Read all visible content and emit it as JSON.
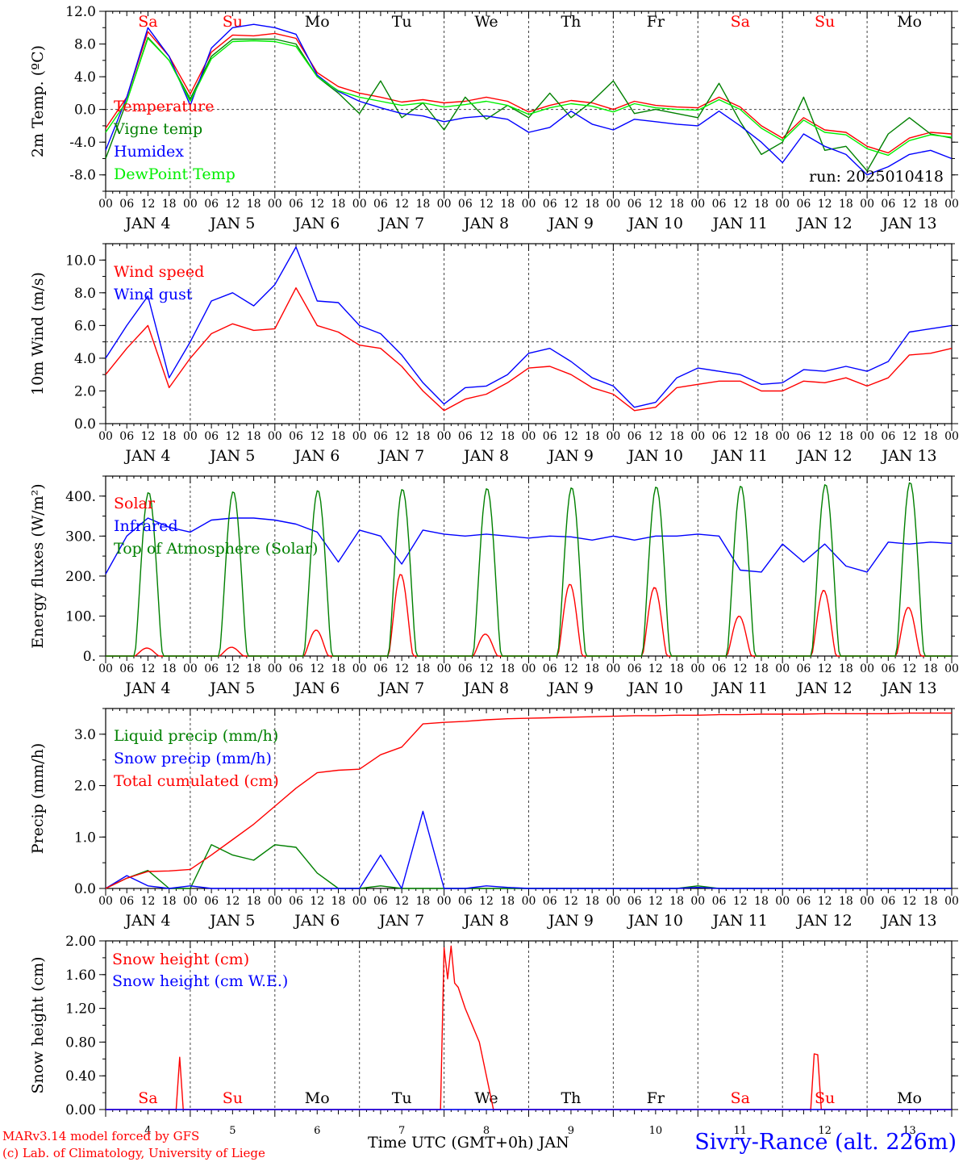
{
  "days": [
    "Sa",
    "Su",
    "Mo",
    "Tu",
    "We",
    "Th",
    "Fr",
    "Sa",
    "Su",
    "Mo"
  ],
  "weekend_flags": [
    true,
    true,
    false,
    false,
    false,
    false,
    false,
    true,
    true,
    false
  ],
  "date_labels": [
    "JAN  4",
    "JAN  5",
    "JAN  6",
    "JAN  7",
    "JAN  8",
    "JAN  9",
    "JAN 10",
    "JAN 11",
    "JAN 12",
    "JAN 13"
  ],
  "bottom_day_numbers": [
    "4",
    "5",
    "6",
    "7",
    "8",
    "9",
    "10",
    "11",
    "12",
    "13"
  ],
  "hour_ticks": [
    "00",
    "06",
    "12",
    "18"
  ],
  "final_hour_tick": "00",
  "xlabel": "Time UTC (GMT+0h) JAN",
  "footer": {
    "model": "MARv3.14 model forced by GFS",
    "credit": "(c) Lab. of Climatology, University of Liege",
    "location": "Sivry-Rance (alt. 226m)"
  },
  "colors": {
    "red": "#ff0000",
    "green": "#008000",
    "blue": "#0000ff",
    "lightgreen": "#00ee00",
    "weekend": "#ff0000",
    "weekday": "#000000"
  },
  "chart_data": [
    {
      "type": "line",
      "id": "temperature",
      "ylabel": "2m Temp. (ºC)",
      "ylim": [
        -10,
        12
      ],
      "yticks": [
        "12.0",
        "8.0",
        "4.0",
        "0.0",
        "-4.0",
        "-8.0"
      ],
      "ytick_values": [
        12,
        8,
        4,
        0,
        -4,
        -8
      ],
      "reference_line": 0,
      "annotation": "run: 2025010418",
      "x_unit": "hours since Jan 4 00 UTC",
      "series": [
        {
          "name": "Temperature",
          "color": "#ff0000",
          "x": [
            0,
            6,
            12,
            18,
            24,
            30,
            36,
            42,
            48,
            54,
            60,
            66,
            72,
            78,
            84,
            90,
            96,
            102,
            108,
            114,
            120,
            126,
            132,
            138,
            144,
            150,
            156,
            162,
            168,
            174,
            180,
            186,
            192,
            198,
            204,
            210,
            216,
            222,
            228,
            234,
            240
          ],
          "y": [
            -2.3,
            1.5,
            9.5,
            6.5,
            1.9,
            7.0,
            9.1,
            9.0,
            9.3,
            8.7,
            4.5,
            2.8,
            2.0,
            1.5,
            0.9,
            1.2,
            0.8,
            1.0,
            1.5,
            1.0,
            -0.3,
            0.5,
            1.1,
            0.8,
            0.0,
            1.0,
            0.5,
            0.3,
            0.2,
            1.5,
            0.3,
            -2.0,
            -3.5,
            -1.0,
            -2.5,
            -2.8,
            -4.5,
            -5.3,
            -3.5,
            -2.8,
            -3.0
          ]
        },
        {
          "name": "Vigne temp",
          "color": "#008000",
          "x": [
            0,
            6,
            12,
            18,
            24,
            30,
            36,
            42,
            48,
            54,
            60,
            66,
            72,
            78,
            84,
            90,
            96,
            102,
            108,
            114,
            120,
            126,
            132,
            138,
            144,
            150,
            156,
            162,
            168,
            174,
            180,
            186,
            192,
            198,
            204,
            210,
            216,
            222,
            228,
            234,
            240
          ],
          "y": [
            -6.0,
            1.0,
            8.8,
            6.0,
            1.3,
            6.5,
            8.6,
            8.6,
            8.6,
            8.0,
            4.0,
            2.0,
            -0.5,
            3.5,
            -1.0,
            0.8,
            -2.5,
            1.5,
            -1.2,
            0.5,
            -1.0,
            2.0,
            -1.0,
            1.0,
            3.5,
            -0.5,
            0.0,
            -0.5,
            -1.0,
            3.2,
            -1.5,
            -5.5,
            -4.0,
            1.5,
            -5.0,
            -4.5,
            -7.5,
            -3.0,
            -1.0,
            -3.0,
            -3.5
          ]
        },
        {
          "name": "Humidex",
          "color": "#0000ff",
          "x": [
            0,
            6,
            12,
            18,
            24,
            30,
            36,
            42,
            48,
            54,
            60,
            66,
            72,
            78,
            84,
            90,
            96,
            102,
            108,
            114,
            120,
            126,
            132,
            138,
            144,
            150,
            156,
            162,
            168,
            174,
            180,
            186,
            192,
            198,
            204,
            210,
            216,
            222,
            228,
            234,
            240
          ],
          "y": [
            -5.0,
            1.5,
            10.0,
            6.5,
            0.5,
            7.5,
            10.0,
            10.4,
            10.0,
            9.2,
            4.2,
            2.2,
            1.0,
            0.2,
            -0.5,
            -0.8,
            -1.5,
            -1.0,
            -0.8,
            -1.2,
            -2.8,
            -2.2,
            -0.2,
            -1.8,
            -2.5,
            -1.2,
            -1.5,
            -1.8,
            -2.0,
            -0.2,
            -2.0,
            -4.0,
            -6.5,
            -3.0,
            -4.5,
            -5.5,
            -8.0,
            -7.0,
            -5.5,
            -5.0,
            -6.0
          ]
        },
        {
          "name": "DewPoint Temp",
          "color": "#00ee00",
          "x": [
            0,
            6,
            12,
            18,
            24,
            30,
            36,
            42,
            48,
            54,
            60,
            66,
            72,
            78,
            84,
            90,
            96,
            102,
            108,
            114,
            120,
            126,
            132,
            138,
            144,
            150,
            156,
            162,
            168,
            174,
            180,
            186,
            192,
            198,
            204,
            210,
            216,
            222,
            228,
            234,
            240
          ],
          "y": [
            -2.8,
            1.0,
            8.7,
            6.0,
            1.0,
            6.2,
            8.3,
            8.4,
            8.3,
            7.7,
            4.0,
            2.3,
            1.5,
            1.0,
            0.5,
            0.8,
            0.3,
            0.6,
            1.0,
            0.5,
            -0.6,
            0.2,
            0.7,
            0.4,
            -0.3,
            0.7,
            0.2,
            0.0,
            -0.1,
            1.2,
            0.0,
            -2.3,
            -3.8,
            -1.3,
            -2.8,
            -3.1,
            -4.8,
            -5.6,
            -3.8,
            -3.1,
            -3.4
          ]
        }
      ]
    },
    {
      "type": "line",
      "id": "wind",
      "ylabel": "10m Wind (m/s)",
      "ylim": [
        0,
        11
      ],
      "yticks": [
        "10.0",
        "8.0",
        "6.0",
        "4.0",
        "2.0",
        "0.0"
      ],
      "ytick_values": [
        10,
        8,
        6,
        4,
        2,
        0
      ],
      "reference_line": 5,
      "series": [
        {
          "name": "Wind speed",
          "color": "#ff0000",
          "x": [
            0,
            6,
            12,
            18,
            24,
            30,
            36,
            42,
            48,
            54,
            60,
            66,
            72,
            78,
            84,
            90,
            96,
            102,
            108,
            114,
            120,
            126,
            132,
            138,
            144,
            150,
            156,
            162,
            168,
            174,
            180,
            186,
            192,
            198,
            204,
            210,
            216,
            222,
            228,
            234,
            240
          ],
          "y": [
            3.0,
            4.6,
            6.0,
            2.2,
            4.0,
            5.5,
            6.1,
            5.7,
            5.8,
            8.3,
            6.0,
            5.6,
            4.8,
            4.6,
            3.5,
            2.0,
            0.8,
            1.5,
            1.8,
            2.5,
            3.4,
            3.5,
            3.0,
            2.2,
            1.8,
            0.8,
            1.0,
            2.2,
            2.4,
            2.6,
            2.6,
            2.0,
            2.0,
            2.6,
            2.5,
            2.8,
            2.3,
            2.8,
            4.2,
            4.3,
            4.6
          ]
        },
        {
          "name": "Wind gust",
          "color": "#0000ff",
          "x": [
            0,
            6,
            12,
            18,
            24,
            30,
            36,
            42,
            48,
            54,
            60,
            66,
            72,
            78,
            84,
            90,
            96,
            102,
            108,
            114,
            120,
            126,
            132,
            138,
            144,
            150,
            156,
            162,
            168,
            174,
            180,
            186,
            192,
            198,
            204,
            210,
            216,
            222,
            228,
            234,
            240
          ],
          "y": [
            4.0,
            6.0,
            7.8,
            2.8,
            5.0,
            7.5,
            8.0,
            7.2,
            8.5,
            10.8,
            7.5,
            7.4,
            6.0,
            5.5,
            4.2,
            2.5,
            1.2,
            2.2,
            2.3,
            3.0,
            4.3,
            4.6,
            3.8,
            2.8,
            2.3,
            1.0,
            1.3,
            2.8,
            3.4,
            3.2,
            3.0,
            2.4,
            2.5,
            3.3,
            3.2,
            3.5,
            3.2,
            3.8,
            5.6,
            5.8,
            6.0
          ]
        }
      ]
    },
    {
      "type": "line",
      "id": "energy",
      "ylabel": "Energy fluxes (W/m²)",
      "ylim": [
        0,
        450
      ],
      "yticks": [
        "400.",
        "300.",
        "200.",
        "100.",
        "0."
      ],
      "ytick_values": [
        400,
        300,
        200,
        100,
        0
      ],
      "series": [
        {
          "name": "Solar",
          "color": "#ff0000",
          "daily_peaks": [
            20,
            22,
            65,
            205,
            55,
            180,
            172,
            100,
            165,
            122
          ]
        },
        {
          "name": "Infrared",
          "color": "#0000ff",
          "x": [
            0,
            6,
            12,
            18,
            24,
            30,
            36,
            42,
            48,
            54,
            60,
            66,
            72,
            78,
            84,
            90,
            96,
            102,
            108,
            114,
            120,
            126,
            132,
            138,
            144,
            150,
            156,
            162,
            168,
            174,
            180,
            186,
            192,
            198,
            204,
            210,
            216,
            222,
            228,
            234,
            240
          ],
          "y": [
            205,
            300,
            345,
            322,
            310,
            340,
            345,
            345,
            340,
            330,
            310,
            235,
            315,
            300,
            230,
            315,
            305,
            300,
            305,
            300,
            295,
            300,
            298,
            290,
            300,
            290,
            300,
            300,
            305,
            300,
            215,
            210,
            280,
            235,
            280,
            225,
            210,
            285,
            280,
            285,
            282
          ]
        },
        {
          "name": "Top of Atmosphere (Solar)",
          "color": "#008000",
          "daily_peaks": [
            410,
            412,
            415,
            418,
            420,
            422,
            424,
            426,
            430,
            435
          ]
        }
      ]
    },
    {
      "type": "line",
      "id": "precip",
      "ylabel": "Precip (mm/h)",
      "ylim": [
        0,
        3.5
      ],
      "yticks": [
        "3.0",
        "2.0",
        "1.0",
        "0.0"
      ],
      "ytick_values": [
        3,
        2,
        1,
        0
      ],
      "series": [
        {
          "name": "Liquid precip (mm/h)",
          "color": "#008000",
          "x": [
            0,
            6,
            12,
            18,
            24,
            30,
            36,
            42,
            48,
            54,
            60,
            66,
            72,
            78,
            84,
            90,
            96,
            102,
            108,
            114,
            120,
            126,
            132,
            138,
            144,
            150,
            156,
            162,
            168,
            174,
            180,
            186,
            192,
            198,
            204,
            210,
            216,
            222,
            228,
            234,
            240
          ],
          "y": [
            0.0,
            0.2,
            0.35,
            0.0,
            0.0,
            0.85,
            0.65,
            0.55,
            0.85,
            0.8,
            0.3,
            0.0,
            0.0,
            0.05,
            0.0,
            0.0,
            0.0,
            0.0,
            0.0,
            0.0,
            0.0,
            0.0,
            0.0,
            0.0,
            0.0,
            0.0,
            0.0,
            0.0,
            0.05,
            0.0,
            0.0,
            0.0,
            0.0,
            0.0,
            0.0,
            0.0,
            0.0,
            0.0,
            0.0,
            0.0,
            0.0
          ]
        },
        {
          "name": "Snow precip (mm/h)",
          "color": "#0000ff",
          "x": [
            0,
            6,
            12,
            18,
            24,
            30,
            36,
            42,
            48,
            54,
            60,
            66,
            72,
            78,
            84,
            90,
            96,
            102,
            108,
            114,
            120,
            126,
            132,
            138,
            144,
            150,
            156,
            162,
            168,
            174,
            180,
            186,
            192,
            198,
            204,
            210,
            216,
            222,
            228,
            234,
            240
          ],
          "y": [
            0.0,
            0.25,
            0.05,
            0.0,
            0.05,
            0.0,
            0.0,
            0.0,
            0.0,
            0.0,
            0.0,
            0.0,
            0.0,
            0.65,
            0.0,
            1.5,
            0.0,
            0.0,
            0.05,
            0.02,
            0.0,
            0.0,
            0.0,
            0.0,
            0.0,
            0.0,
            0.0,
            0.0,
            0.02,
            0.0,
            0.0,
            0.0,
            0.0,
            0.0,
            0.0,
            0.0,
            0.0,
            0.0,
            0.0,
            0.0,
            0.0
          ]
        },
        {
          "name": "Total cumulated (cm)",
          "color": "#ff0000",
          "x": [
            0,
            6,
            12,
            18,
            24,
            30,
            36,
            42,
            48,
            54,
            60,
            66,
            72,
            78,
            84,
            90,
            96,
            102,
            108,
            114,
            120,
            126,
            132,
            138,
            144,
            150,
            156,
            162,
            168,
            174,
            180,
            186,
            192,
            198,
            204,
            210,
            216,
            222,
            228,
            234,
            240
          ],
          "y": [
            0.0,
            0.2,
            0.33,
            0.34,
            0.37,
            0.65,
            0.95,
            1.25,
            1.6,
            1.95,
            2.25,
            2.3,
            2.32,
            2.6,
            2.75,
            3.2,
            3.23,
            3.25,
            3.28,
            3.3,
            3.31,
            3.32,
            3.33,
            3.34,
            3.35,
            3.36,
            3.36,
            3.37,
            3.37,
            3.38,
            3.38,
            3.39,
            3.39,
            3.39,
            3.4,
            3.4,
            3.4,
            3.4,
            3.41,
            3.41,
            3.41
          ]
        }
      ]
    },
    {
      "type": "line",
      "id": "snow",
      "ylabel": "Snow height (cm)",
      "ylim": [
        0,
        2
      ],
      "yticks": [
        "2.00",
        "1.60",
        "1.20",
        "0.80",
        "0.40",
        "0.00"
      ],
      "ytick_values": [
        2.0,
        1.6,
        1.2,
        0.8,
        0.4,
        0.0
      ],
      "series": [
        {
          "name": "Snow height (cm)",
          "color": "#ff0000",
          "x": [
            0,
            20,
            21,
            22,
            23,
            95,
            96,
            97,
            98,
            99,
            100,
            102,
            106,
            110,
            114,
            200,
            201,
            202,
            203,
            204,
            240
          ],
          "y": [
            0,
            0,
            0.62,
            0,
            0,
            0,
            1.92,
            1.55,
            1.94,
            1.5,
            1.45,
            1.2,
            0.8,
            0,
            0,
            0,
            0.66,
            0.65,
            0,
            0,
            0
          ]
        },
        {
          "name": "Snow height (cm W.E.)",
          "color": "#0000ff",
          "x": [
            0,
            240
          ],
          "y": [
            0,
            0
          ]
        }
      ]
    }
  ]
}
